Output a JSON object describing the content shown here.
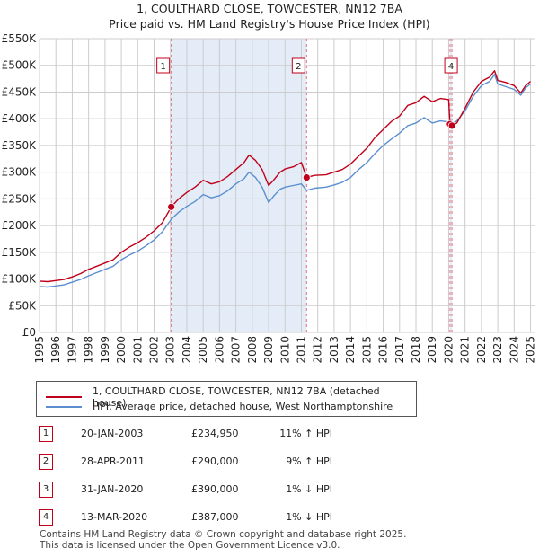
{
  "title_line1": "1, COULTHARD CLOSE, TOWCESTER, NN12 7BA",
  "title_line2": "Price paid vs. HM Land Registry's House Price Index (HPI)",
  "colors": {
    "property": "#c0001a",
    "hpi": "#5b8fd0",
    "shade": "#e4ecf8",
    "marker_line": "#e07080"
  },
  "legend": {
    "property_label": "1, COULTHARD CLOSE, TOWCESTER, NN12 7BA (detached house)",
    "hpi_label": "HPI: Average price, detached house, West Northamptonshire"
  },
  "sales": [
    {
      "num": "1",
      "date": "20-JAN-2003",
      "price": "£234,950",
      "hpi": "11% ↑ HPI"
    },
    {
      "num": "2",
      "date": "28-APR-2011",
      "price": "£290,000",
      "hpi": "9% ↑ HPI"
    },
    {
      "num": "3",
      "date": "31-JAN-2020",
      "price": "£390,000",
      "hpi": "1% ↓ HPI"
    },
    {
      "num": "4",
      "date": "13-MAR-2020",
      "price": "£387,000",
      "hpi": "1% ↓ HPI"
    }
  ],
  "footer_line1": "Contains HM Land Registry data © Crown copyright and database right 2025.",
  "footer_line2": "This data is licensed under the Open Government Licence v3.0.",
  "chart_data": {
    "type": "line",
    "title": "Price paid vs. HM Land Registry's House Price Index (HPI)",
    "xlabel": "",
    "ylabel": "",
    "xlim": [
      1995,
      2025.3
    ],
    "ylim": [
      0,
      550000
    ],
    "y_ticks": [
      {
        "v": 0,
        "label": "£0"
      },
      {
        "v": 50000,
        "label": "£50K"
      },
      {
        "v": 100000,
        "label": "£100K"
      },
      {
        "v": 150000,
        "label": "£150K"
      },
      {
        "v": 200000,
        "label": "£200K"
      },
      {
        "v": 250000,
        "label": "£250K"
      },
      {
        "v": 300000,
        "label": "£300K"
      },
      {
        "v": 350000,
        "label": "£350K"
      },
      {
        "v": 400000,
        "label": "£400K"
      },
      {
        "v": 450000,
        "label": "£450K"
      },
      {
        "v": 500000,
        "label": "£500K"
      },
      {
        "v": 550000,
        "label": "£550K"
      }
    ],
    "x_ticks": [
      1995,
      1996,
      1997,
      1998,
      1999,
      2000,
      2001,
      2002,
      2003,
      2004,
      2005,
      2006,
      2007,
      2008,
      2009,
      2010,
      2011,
      2012,
      2013,
      2014,
      2015,
      2016,
      2017,
      2018,
      2019,
      2020,
      2021,
      2022,
      2023,
      2024,
      2025
    ],
    "shaded_ranges": [
      [
        2003.05,
        2011.32
      ],
      [
        2020.08,
        2020.2
      ]
    ],
    "sale_markers": [
      {
        "label": "1",
        "x": 2003.05,
        "y": 234950
      },
      {
        "label": "2",
        "x": 2011.32,
        "y": 290000
      },
      {
        "label": "3",
        "x": 2020.08,
        "y": 390000
      },
      {
        "label": "4",
        "x": 2020.2,
        "y": 387000
      }
    ],
    "series": [
      {
        "name": "1, COULTHARD CLOSE, TOWCESTER, NN12 7BA (detached house)",
        "color": "#c0001a",
        "x": [
          1995.0,
          1995.5,
          1996.0,
          1996.5,
          1997.0,
          1997.5,
          1998.0,
          1998.5,
          1999.0,
          1999.5,
          2000.0,
          2000.5,
          2001.0,
          2001.5,
          2002.0,
          2002.5,
          2003.05,
          2003.5,
          2004.0,
          2004.5,
          2005.0,
          2005.5,
          2006.0,
          2006.5,
          2007.0,
          2007.5,
          2007.8,
          2008.2,
          2008.6,
          2009.0,
          2009.3,
          2009.7,
          2010.0,
          2010.5,
          2011.0,
          2011.32,
          2011.8,
          2012.5,
          2013.0,
          2013.5,
          2014.0,
          2014.5,
          2015.0,
          2015.5,
          2016.0,
          2016.5,
          2017.0,
          2017.5,
          2018.0,
          2018.5,
          2019.0,
          2019.5,
          2020.0,
          2020.08,
          2020.2,
          2020.5,
          2021.0,
          2021.5,
          2022.0,
          2022.5,
          2022.8,
          2023.0,
          2023.5,
          2024.0,
          2024.4,
          2024.7,
          2025.0
        ],
        "y": [
          96000,
          95000,
          97000,
          99000,
          104000,
          110000,
          118000,
          124000,
          130000,
          136000,
          150000,
          160000,
          168000,
          178000,
          190000,
          205000,
          234950,
          250000,
          262000,
          272000,
          285000,
          278000,
          282000,
          292000,
          305000,
          318000,
          332000,
          322000,
          305000,
          275000,
          285000,
          300000,
          306000,
          310000,
          318000,
          290000,
          294000,
          295000,
          300000,
          305000,
          315000,
          330000,
          345000,
          365000,
          380000,
          395000,
          405000,
          425000,
          430000,
          442000,
          432000,
          438000,
          436000,
          390000,
          387000,
          392000,
          420000,
          450000,
          470000,
          478000,
          490000,
          472000,
          468000,
          462000,
          448000,
          462000,
          470000
        ]
      },
      {
        "name": "HPI: Average price, detached house, West Northamptonshire",
        "color": "#5b8fd0",
        "x": [
          1995.0,
          1995.5,
          1996.0,
          1996.5,
          1997.0,
          1997.5,
          1998.0,
          1998.5,
          1999.0,
          1999.5,
          2000.0,
          2000.5,
          2001.0,
          2001.5,
          2002.0,
          2002.5,
          2003.05,
          2003.5,
          2004.0,
          2004.5,
          2005.0,
          2005.5,
          2006.0,
          2006.5,
          2007.0,
          2007.5,
          2007.8,
          2008.2,
          2008.6,
          2009.0,
          2009.3,
          2009.7,
          2010.0,
          2010.5,
          2011.0,
          2011.32,
          2011.8,
          2012.5,
          2013.0,
          2013.5,
          2014.0,
          2014.5,
          2015.0,
          2015.5,
          2016.0,
          2016.5,
          2017.0,
          2017.5,
          2018.0,
          2018.5,
          2019.0,
          2019.5,
          2020.0,
          2020.08,
          2020.2,
          2020.5,
          2021.0,
          2021.5,
          2022.0,
          2022.5,
          2022.8,
          2023.0,
          2023.5,
          2024.0,
          2024.4,
          2024.7,
          2025.0
        ],
        "y": [
          86000,
          85000,
          87000,
          89000,
          94000,
          99000,
          106000,
          112000,
          118000,
          124000,
          136000,
          145000,
          152000,
          162000,
          173000,
          188000,
          212000,
          225000,
          236000,
          245000,
          258000,
          252000,
          256000,
          265000,
          278000,
          288000,
          300000,
          290000,
          272000,
          243000,
          255000,
          268000,
          272000,
          275000,
          278000,
          266000,
          270000,
          272000,
          276000,
          281000,
          290000,
          305000,
          318000,
          335000,
          350000,
          362000,
          373000,
          387000,
          392000,
          402000,
          392000,
          396000,
          394000,
          393000,
          391000,
          396000,
          415000,
          442000,
          462000,
          470000,
          483000,
          465000,
          460000,
          455000,
          444000,
          458000,
          465000
        ]
      }
    ]
  }
}
